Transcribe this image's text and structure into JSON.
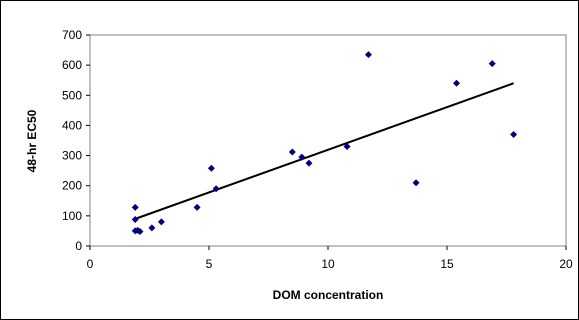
{
  "chart_data": {
    "type": "scatter",
    "title": "",
    "xlabel": "DOM concentration",
    "ylabel": "48-hr EC50",
    "xlim": [
      0,
      20
    ],
    "ylim": [
      0,
      700
    ],
    "x_ticks": [
      0,
      5,
      10,
      15,
      20
    ],
    "y_ticks": [
      0,
      100,
      200,
      300,
      400,
      500,
      600,
      700
    ],
    "x_tick_labels": [
      "0",
      "5",
      "10",
      "15",
      "20"
    ],
    "y_tick_labels": [
      "0",
      "100",
      "200",
      "300",
      "400",
      "500",
      "600",
      "700"
    ],
    "grid": "none",
    "legend": "none",
    "marker": "diamond",
    "marker_color": "#000080",
    "series": [
      {
        "points": [
          {
            "x": 1.9,
            "y": 50
          },
          {
            "x": 2.0,
            "y": 52
          },
          {
            "x": 2.1,
            "y": 48
          },
          {
            "x": 1.9,
            "y": 88
          },
          {
            "x": 1.9,
            "y": 128
          },
          {
            "x": 2.6,
            "y": 60
          },
          {
            "x": 3.0,
            "y": 80
          },
          {
            "x": 4.5,
            "y": 128
          },
          {
            "x": 5.1,
            "y": 258
          },
          {
            "x": 5.3,
            "y": 190
          },
          {
            "x": 8.5,
            "y": 312
          },
          {
            "x": 8.9,
            "y": 295
          },
          {
            "x": 9.2,
            "y": 275
          },
          {
            "x": 10.8,
            "y": 330
          },
          {
            "x": 11.7,
            "y": 635
          },
          {
            "x": 13.7,
            "y": 210
          },
          {
            "x": 15.4,
            "y": 540
          },
          {
            "x": 16.9,
            "y": 605
          },
          {
            "x": 17.8,
            "y": 370
          }
        ]
      }
    ],
    "trendline": {
      "type": "linear",
      "color": "#000000",
      "points": [
        {
          "x": 1.9,
          "y": 90
        },
        {
          "x": 17.8,
          "y": 540
        }
      ]
    }
  }
}
